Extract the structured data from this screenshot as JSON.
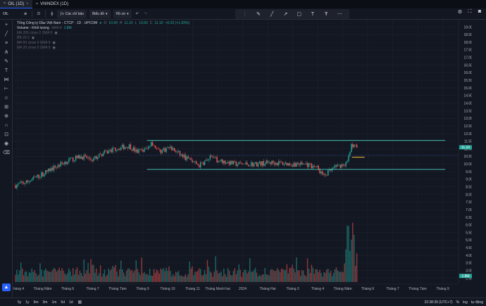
{
  "tabs": [
    {
      "label": "OIL (1D)",
      "active": true
    },
    {
      "label": "VNINDEX (1D)",
      "active": false
    }
  ],
  "toolbar": {
    "symbol": "OIL",
    "add_icon": "plus-circle-icon",
    "interval": "D",
    "indicators_label": "Các chỉ báo",
    "chart_type_label": "Biểu đồ",
    "profile_label": "Hồ sơ"
  },
  "legend": {
    "title": "Tổng Công ty Dầu Việt Nam - CTCP · 1D · UPCOM",
    "o_label": "O",
    "o": "10.90",
    "h_label": "H",
    "h": "11.15",
    "l_label": "L",
    "l": "10.60",
    "c_label": "C",
    "c": "11.10",
    "change": "+0.20 (+1.83%)",
    "volume_label": "Volume - Khối lượng",
    "volume_ma": "SMA 9",
    "volume_value": "1.8M",
    "ind1": "MA 200 close 0 SMA 9",
    "ind2": "BB 20 2",
    "ind3": "MA 50 close 0 SMA 9",
    "ind4": "MA 20 close 0 SMA 9"
  },
  "price_axis": {
    "ticks": [
      "19.00",
      "18.50",
      "18.00",
      "17.50",
      "17.00",
      "16.50",
      "16.00",
      "15.50",
      "15.00",
      "14.50",
      "14.00",
      "13.50",
      "13.00",
      "12.50",
      "12.00",
      "11.50",
      "11.00",
      "10.50",
      "10.00",
      "9.50",
      "9.00",
      "8.50",
      "8.00",
      "7.50",
      "7.00",
      "6.50",
      "6.00",
      "5.50",
      "5.00",
      "4.50",
      "4.00",
      "3.50",
      "3.00",
      "2.50"
    ],
    "current_price": "11.10",
    "volume_tag": "1.8M"
  },
  "time_axis": {
    "ticks": [
      "Tháng 4",
      "Tháng Năm",
      "Tháng 6",
      "Tháng 7",
      "Tháng Tám",
      "Tháng 9",
      "Tháng 10",
      "Tháng 11",
      "Tháng Mười hai",
      "2024",
      "Tháng Hai",
      "Tháng 3",
      "Tháng 4",
      "Tháng Năm",
      "Tháng 6",
      "Tháng 7",
      "Tháng Tám",
      "Tháng 9"
    ]
  },
  "bottom": {
    "ranges": [
      "5y",
      "1y",
      "6m",
      "3m",
      "1m",
      "5d",
      "1d"
    ],
    "clock": "22:38:30 (UTC+7)",
    "pct": "%",
    "log": "log",
    "auto": "tự động"
  },
  "chart_data": {
    "type": "candlestick",
    "title": "Tổng Công ty Dầu Việt Nam - CTCP · 1D · UPCOM",
    "ylim": [
      2.2,
      19.3
    ],
    "price_path": [
      [
        0,
        8.6
      ],
      [
        0.03,
        8.8
      ],
      [
        0.07,
        9.3
      ],
      [
        0.1,
        9.7
      ],
      [
        0.14,
        10.2
      ],
      [
        0.18,
        10.5
      ],
      [
        0.21,
        10.3
      ],
      [
        0.24,
        10.7
      ],
      [
        0.27,
        11.0
      ],
      [
        0.31,
        11.2
      ],
      [
        0.33,
        10.8
      ],
      [
        0.36,
        11.0
      ],
      [
        0.37,
        11.5
      ],
      [
        0.39,
        10.8
      ],
      [
        0.42,
        11.1
      ],
      [
        0.45,
        10.6
      ],
      [
        0.48,
        10.2
      ],
      [
        0.5,
        9.9
      ],
      [
        0.53,
        10.4
      ],
      [
        0.56,
        10.2
      ],
      [
        0.6,
        10.0
      ],
      [
        0.65,
        10.0
      ],
      [
        0.7,
        10.1
      ],
      [
        0.75,
        10.0
      ],
      [
        0.79,
        10.0
      ],
      [
        0.82,
        9.8
      ],
      [
        0.84,
        9.2
      ],
      [
        0.86,
        9.6
      ],
      [
        0.88,
        9.9
      ],
      [
        0.9,
        10.0
      ],
      [
        0.915,
        11.2
      ],
      [
        0.93,
        11.1
      ]
    ],
    "channel": {
      "upper": 11.55,
      "lower": 9.65,
      "start": 0.3,
      "end": 0.97
    },
    "hline_dashed": 10.6,
    "hline_orange": 10.45,
    "volume_scale_max": 6.3
  },
  "colors": {
    "up": "#26a69a",
    "down": "#ef5350",
    "grid": "#1e222d",
    "channel": "#4dd0c4",
    "dashed": "#3a5caa",
    "orange": "#c8a030",
    "accent": "#2962ff"
  }
}
